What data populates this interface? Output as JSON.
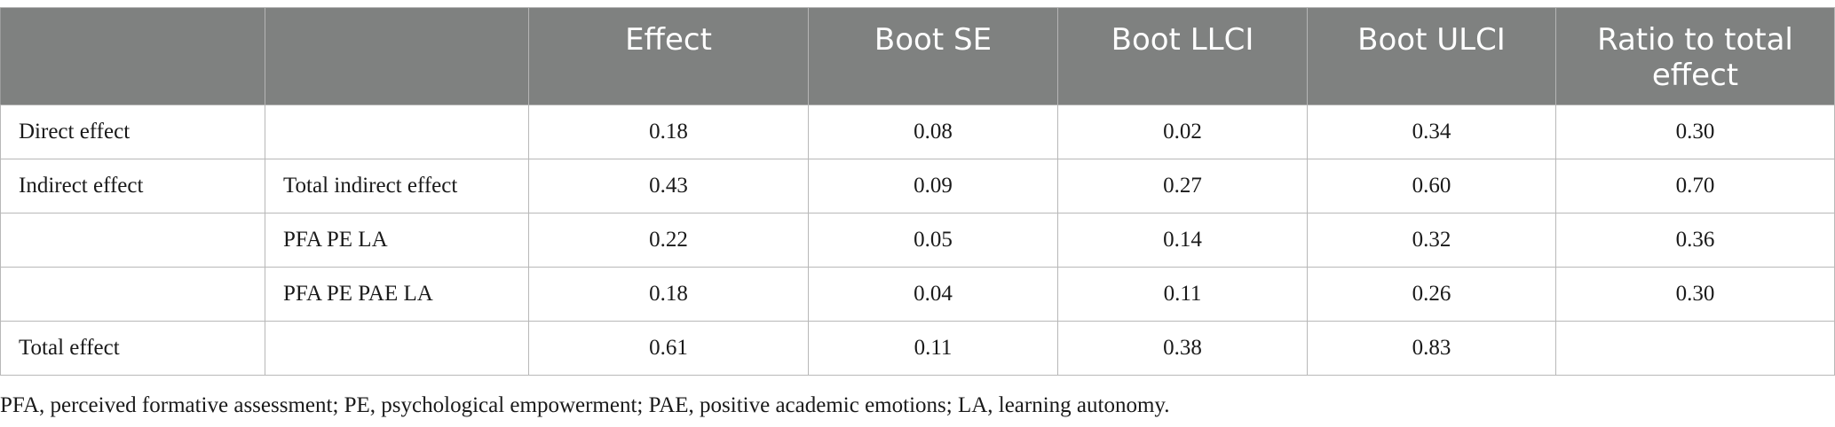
{
  "table": {
    "headers": [
      "",
      "",
      "Effect",
      "Boot SE",
      "Boot LLCI",
      "Boot ULCI",
      "Ratio to total effect"
    ],
    "rows": [
      [
        "Direct effect",
        "",
        "0.18",
        "0.08",
        "0.02",
        "0.34",
        "0.30"
      ],
      [
        "Indirect effect",
        "Total indirect effect",
        "0.43",
        "0.09",
        "0.27",
        "0.60",
        "0.70"
      ],
      [
        "",
        "PFA PE LA",
        "0.22",
        "0.05",
        "0.14",
        "0.32",
        "0.36"
      ],
      [
        "",
        "PFA PE PAE LA",
        "0.18",
        "0.04",
        "0.11",
        "0.26",
        "0.30"
      ],
      [
        "Total effect",
        "",
        "0.61",
        "0.11",
        "0.38",
        "0.83",
        ""
      ]
    ]
  },
  "footnote": "PFA, perceived formative assessment; PE, psychological empowerment; PAE, positive academic emotions; LA, learning autonomy.",
  "colors": {
    "header_bg": "#7f8180",
    "header_text": "#ffffff",
    "grid": "#b8b8b8"
  }
}
